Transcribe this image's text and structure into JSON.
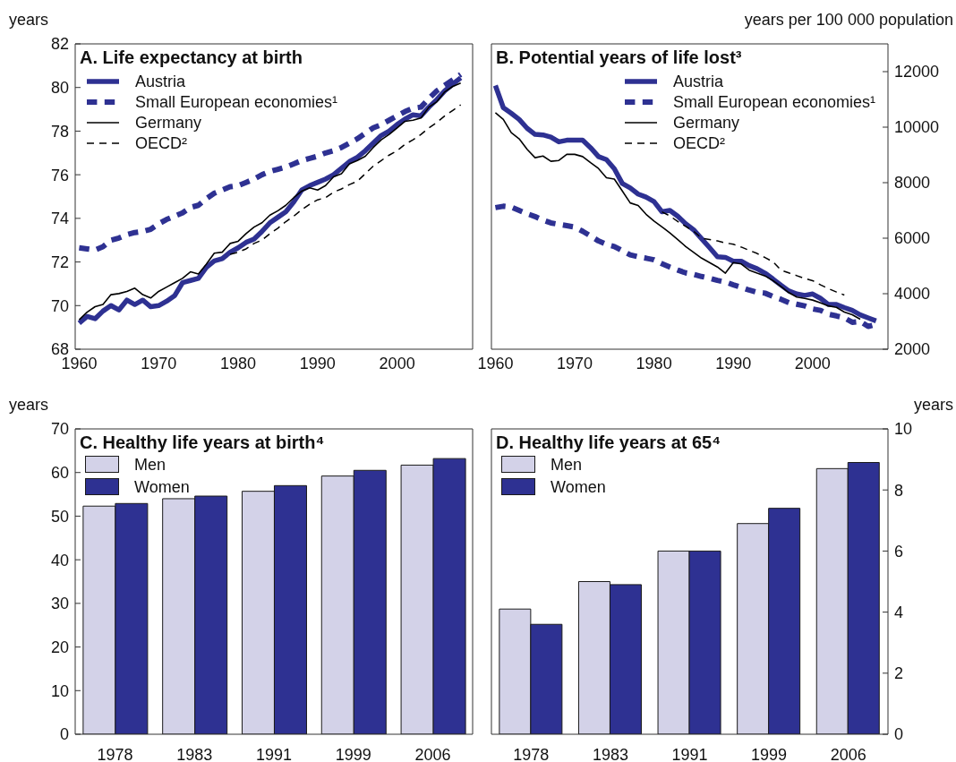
{
  "chart_data": [
    {
      "type": "line",
      "title": "A. Life expectancy at birth",
      "ylabel": "years",
      "legend": "top left",
      "x": [
        1960,
        1961,
        1962,
        1963,
        1964,
        1965,
        1966,
        1967,
        1968,
        1969,
        1970,
        1971,
        1972,
        1973,
        1974,
        1975,
        1976,
        1977,
        1978,
        1979,
        1980,
        1981,
        1982,
        1983,
        1984,
        1985,
        1986,
        1987,
        1988,
        1989,
        1990,
        1991,
        1992,
        1993,
        1994,
        1995,
        1996,
        1997,
        1998,
        1999,
        2000,
        2001,
        2002,
        2003,
        2004,
        2005,
        2006,
        2007,
        2008
      ],
      "xlim": [
        1959.5,
        2009.5
      ],
      "xticks": [
        1960,
        1970,
        1980,
        1990,
        2000
      ],
      "ylim": [
        68,
        82
      ],
      "yticks": [
        68,
        70,
        72,
        74,
        76,
        78,
        80,
        82
      ],
      "series": [
        {
          "name": "Austria",
          "color": "#2e3192",
          "line_style": "solid",
          "values": [
            69.2,
            69.5,
            69.4,
            69.75,
            70.0,
            69.8,
            70.25,
            70.05,
            70.25,
            69.95,
            70.0,
            70.2,
            70.45,
            71.05,
            71.15,
            71.25,
            71.75,
            72.05,
            72.15,
            72.45,
            72.65,
            72.9,
            73.05,
            73.4,
            73.8,
            74.05,
            74.3,
            74.75,
            75.3,
            75.5,
            75.65,
            75.8,
            76.0,
            76.3,
            76.6,
            76.8,
            77.1,
            77.45,
            77.8,
            78.0,
            78.3,
            78.55,
            78.75,
            78.7,
            79.1,
            79.45,
            79.85,
            80.15,
            80.45
          ]
        },
        {
          "name": "Small European economies¹",
          "color": "#2e3192",
          "line_style": "dashed",
          "values": [
            72.65,
            72.6,
            72.55,
            72.7,
            73.0,
            73.1,
            73.25,
            73.35,
            73.4,
            73.5,
            73.75,
            73.95,
            74.1,
            74.25,
            74.5,
            74.6,
            74.9,
            75.15,
            75.3,
            75.45,
            75.5,
            75.65,
            75.8,
            76.0,
            76.15,
            76.25,
            76.35,
            76.5,
            76.65,
            76.75,
            76.85,
            77.0,
            77.1,
            77.25,
            77.45,
            77.65,
            77.9,
            78.15,
            78.3,
            78.5,
            78.7,
            78.9,
            79.05,
            79.1,
            79.5,
            79.85,
            80.1,
            80.35,
            80.6
          ]
        },
        {
          "name": "Germany",
          "color": "#000000",
          "line_style": "solid",
          "values": [
            69.35,
            69.7,
            69.95,
            70.05,
            70.5,
            70.55,
            70.65,
            70.8,
            70.5,
            70.35,
            70.65,
            70.85,
            71.05,
            71.25,
            71.55,
            71.45,
            71.9,
            72.4,
            72.45,
            72.85,
            72.95,
            73.3,
            73.6,
            73.8,
            74.15,
            74.35,
            74.6,
            74.95,
            75.25,
            75.4,
            75.3,
            75.5,
            75.9,
            76.05,
            76.5,
            76.65,
            76.85,
            77.25,
            77.6,
            77.85,
            78.15,
            78.45,
            78.5,
            78.6,
            79.1,
            79.35,
            79.8,
            80.05,
            80.2
          ]
        },
        {
          "name": "OECD²",
          "color": "#000000",
          "line_style": "dashed",
          "values": [
            null,
            null,
            null,
            null,
            null,
            null,
            null,
            null,
            null,
            null,
            null,
            null,
            null,
            null,
            null,
            null,
            null,
            null,
            null,
            72.35,
            72.45,
            72.6,
            72.85,
            73.0,
            73.3,
            73.55,
            73.85,
            74.1,
            74.4,
            74.65,
            74.85,
            74.95,
            75.2,
            75.35,
            75.55,
            75.7,
            76.05,
            76.4,
            76.65,
            76.9,
            77.1,
            77.4,
            77.6,
            77.85,
            78.15,
            78.4,
            78.7,
            78.95,
            79.2
          ]
        }
      ]
    },
    {
      "type": "line",
      "title": "B. Potential years of life lost³",
      "y2label": "years per 100 000 population",
      "legend": "top right",
      "x": [
        1960,
        1961,
        1962,
        1963,
        1964,
        1965,
        1966,
        1967,
        1968,
        1969,
        1970,
        1971,
        1972,
        1973,
        1974,
        1975,
        1976,
        1977,
        1978,
        1979,
        1980,
        1981,
        1982,
        1983,
        1984,
        1985,
        1986,
        1987,
        1988,
        1989,
        1990,
        1991,
        1992,
        1993,
        1994,
        1995,
        1996,
        1997,
        1998,
        1999,
        2000,
        2001,
        2002,
        2003,
        2004,
        2005,
        2006,
        2007,
        2008
      ],
      "xlim": [
        1959.5,
        2009.5
      ],
      "xticks": [
        1960,
        1970,
        1980,
        1990,
        2000
      ],
      "y2lim": [
        2000,
        13000
      ],
      "y2ticks": [
        2000,
        4000,
        6000,
        8000,
        10000,
        12000
      ],
      "series": [
        {
          "name": "Austria",
          "color": "#2e3192",
          "line_style": "solid",
          "axis": "y2",
          "values": [
            11500,
            10700,
            10500,
            10280,
            9960,
            9740,
            9720,
            9640,
            9470,
            9530,
            9530,
            9530,
            9260,
            8940,
            8830,
            8500,
            7970,
            7810,
            7590,
            7480,
            7320,
            6950,
            7000,
            6790,
            6520,
            6300,
            5980,
            5660,
            5330,
            5310,
            5170,
            5170,
            5010,
            4900,
            4740,
            4530,
            4310,
            4100,
            3990,
            3940,
            3990,
            3830,
            3610,
            3610,
            3500,
            3400,
            3240,
            3130,
            3020
          ]
        },
        {
          "name": "Small European economies¹",
          "color": "#2e3192",
          "line_style": "dashed",
          "axis": "y2",
          "values": [
            7100,
            7150,
            7120,
            7000,
            6880,
            6780,
            6650,
            6550,
            6500,
            6450,
            6400,
            6250,
            6080,
            5900,
            5780,
            5700,
            5550,
            5400,
            5330,
            5280,
            5220,
            5080,
            4960,
            4850,
            4750,
            4700,
            4620,
            4560,
            4480,
            4420,
            4320,
            4230,
            4130,
            4050,
            4020,
            3900,
            3800,
            3680,
            3620,
            3560,
            3450,
            3400,
            3260,
            3200,
            3130,
            2970,
            3000,
            2820,
            2900
          ]
        },
        {
          "name": "Germany",
          "color": "#000000",
          "line_style": "solid",
          "axis": "y2",
          "values": [
            10520,
            10280,
            9800,
            9580,
            9200,
            8900,
            8960,
            8770,
            8800,
            9020,
            9020,
            8940,
            8720,
            8510,
            8180,
            8130,
            7700,
            7270,
            7180,
            6860,
            6620,
            6410,
            6190,
            5950,
            5700,
            5490,
            5280,
            5120,
            4960,
            4740,
            5120,
            5070,
            4850,
            4740,
            4640,
            4470,
            4260,
            4040,
            3880,
            3830,
            3770,
            3670,
            3560,
            3510,
            3340,
            3240,
            3080,
            null,
            null
          ]
        },
        {
          "name": "OECD²",
          "color": "#000000",
          "line_style": "dashed",
          "axis": "y2",
          "values": [
            null,
            null,
            null,
            null,
            null,
            null,
            null,
            null,
            null,
            null,
            null,
            null,
            null,
            null,
            null,
            null,
            null,
            null,
            null,
            null,
            null,
            6950,
            6800,
            6600,
            6420,
            6250,
            6000,
            5950,
            5900,
            5830,
            5780,
            5680,
            5560,
            5450,
            5300,
            5150,
            4850,
            4750,
            4650,
            4550,
            4470,
            4320,
            4180,
            4060,
            3950,
            null,
            null,
            null,
            null
          ]
        }
      ]
    },
    {
      "type": "bar",
      "title": "C. Healthy life years at birth⁴",
      "ylabel": "years",
      "legend": "top left",
      "categories": [
        "1978",
        "1983",
        "1991",
        "1999",
        "2006"
      ],
      "ylim": [
        0,
        70
      ],
      "yticks": [
        0,
        10,
        20,
        30,
        40,
        50,
        60,
        70
      ],
      "series": [
        {
          "name": "Men",
          "color": "#d3d2e8",
          "values": [
            52.3,
            54.0,
            55.7,
            59.2,
            61.7
          ]
        },
        {
          "name": "Women",
          "color": "#2e3192",
          "values": [
            52.9,
            54.6,
            57.0,
            60.5,
            63.2
          ]
        }
      ]
    },
    {
      "type": "bar",
      "title": "D. Healthy life years at 65⁴",
      "y2label": "years",
      "legend": "top left",
      "categories": [
        "1978",
        "1983",
        "1991",
        "1999",
        "2006"
      ],
      "y2lim": [
        0,
        10
      ],
      "y2ticks": [
        0,
        2,
        4,
        6,
        8,
        10
      ],
      "series": [
        {
          "name": "Men",
          "color": "#d3d2e8",
          "axis": "y2",
          "values": [
            4.1,
            5.0,
            6.0,
            6.9,
            8.7
          ]
        },
        {
          "name": "Women",
          "color": "#2e3192",
          "axis": "y2",
          "values": [
            3.6,
            4.9,
            6.0,
            7.4,
            8.9
          ]
        }
      ]
    }
  ]
}
